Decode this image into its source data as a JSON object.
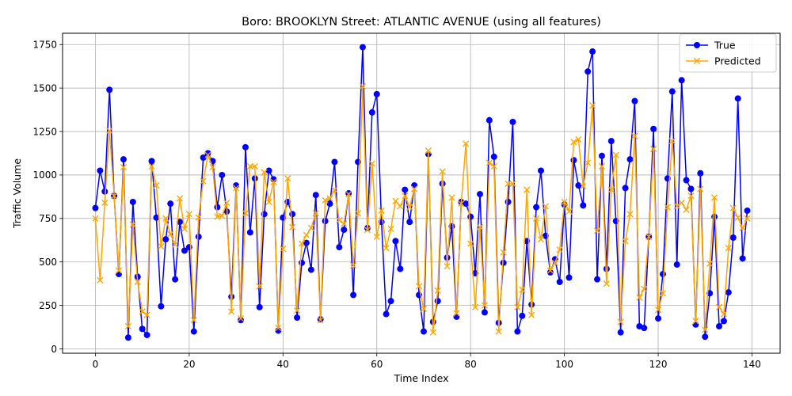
{
  "chart_data": {
    "type": "line",
    "title": "Boro: BROOKLYN Street: ATLANTIC AVENUE (using all features)",
    "xlabel": "Time Index",
    "ylabel": "Traffic Volume",
    "xlim": [
      -7,
      146
    ],
    "ylim": [
      -25,
      1815
    ],
    "xticks": [
      0,
      20,
      40,
      60,
      80,
      100,
      120,
      140
    ],
    "yticks": [
      0,
      250,
      500,
      750,
      1000,
      1250,
      1500,
      1750
    ],
    "grid": true,
    "legend_position": "top-right",
    "series": [
      {
        "name": "True",
        "color": "#0000ff",
        "marker": "circle",
        "values": [
          810,
          1025,
          905,
          1490,
          880,
          430,
          1090,
          65,
          845,
          415,
          115,
          80,
          1080,
          755,
          245,
          630,
          835,
          400,
          730,
          565,
          585,
          100,
          645,
          1100,
          1125,
          1080,
          815,
          1000,
          790,
          300,
          940,
          165,
          1160,
          670,
          980,
          240,
          775,
          1025,
          975,
          105,
          755,
          845,
          775,
          180,
          495,
          610,
          455,
          885,
          170,
          735,
          835,
          1075,
          585,
          685,
          895,
          310,
          1075,
          1735,
          695,
          1360,
          1465,
          730,
          200,
          275,
          620,
          460,
          915,
          730,
          940,
          310,
          100,
          1120,
          155,
          275,
          950,
          525,
          705,
          185,
          845,
          835,
          760,
          435,
          890,
          210,
          1315,
          1105,
          150,
          495,
          845,
          1305,
          100,
          190,
          620,
          255,
          815,
          1025,
          650,
          440,
          515,
          385,
          830,
          410,
          1085,
          940,
          825,
          1595,
          1710,
          400,
          1110,
          460,
          1195,
          735,
          95,
          925,
          1090,
          1425,
          130,
          120,
          645,
          1265,
          175,
          430,
          980,
          1480,
          485,
          1545,
          970,
          920,
          140,
          1010,
          70,
          320,
          760,
          130,
          160,
          325,
          640,
          1440,
          520,
          795
        ]
      },
      {
        "name": "Predicted",
        "color": "#ffa500",
        "marker": "x",
        "values": [
          750,
          395,
          840,
          1255,
          880,
          450,
          1045,
          130,
          715,
          385,
          215,
          195,
          1050,
          940,
          590,
          750,
          660,
          600,
          865,
          690,
          775,
          165,
          755,
          965,
          1115,
          1045,
          760,
          765,
          840,
          215,
          925,
          175,
          780,
          1050,
          1050,
          360,
          1015,
          845,
          960,
          120,
          575,
          980,
          700,
          220,
          605,
          655,
          695,
          780,
          165,
          855,
          865,
          915,
          740,
          720,
          890,
          480,
          780,
          1510,
          685,
          1065,
          645,
          795,
          580,
          690,
          850,
          820,
          880,
          815,
          920,
          360,
          230,
          1140,
          95,
          335,
          1020,
          475,
          870,
          205,
          835,
          1180,
          605,
          240,
          700,
          250,
          1070,
          1050,
          100,
          555,
          950,
          950,
          240,
          340,
          915,
          195,
          750,
          630,
          820,
          450,
          495,
          570,
          845,
          790,
          1190,
          1205,
          935,
          1070,
          1400,
          680,
          1050,
          375,
          915,
          1115,
          155,
          620,
          775,
          1225,
          295,
          345,
          645,
          1150,
          225,
          320,
          815,
          1195,
          820,
          840,
          800,
          880,
          160,
          920,
          110,
          490,
          870,
          240,
          200,
          580,
          810,
          755,
          695,
          750
        ]
      }
    ]
  }
}
